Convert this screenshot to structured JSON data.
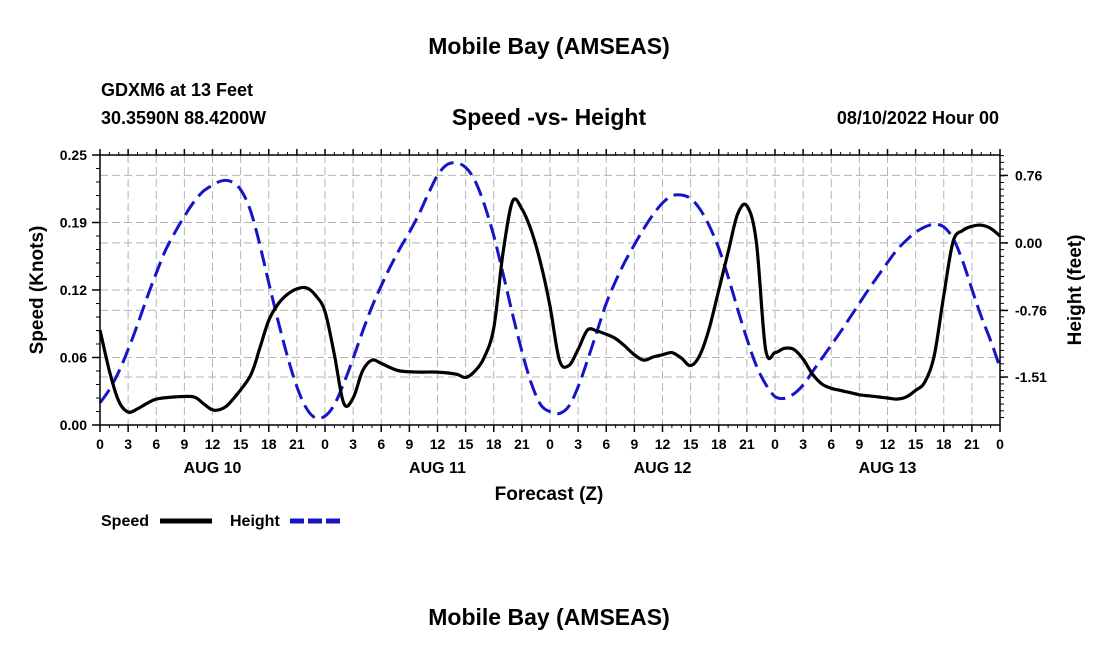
{
  "header": {
    "title": "Mobile Bay (AMSEAS)",
    "station": "GDXM6 at 13 Feet",
    "coords": "30.3590N  88.4200W",
    "datetime": "08/10/2022 Hour 00"
  },
  "footer": {
    "title": "Mobile Bay (AMSEAS)"
  },
  "colors": {
    "speed": "#000000",
    "height": "#1515c8",
    "grid": "#b4b4b4"
  },
  "chart_data": {
    "type": "line",
    "title": "Speed -vs- Height",
    "xlabel": "Forecast (Z)",
    "ylabel": "Speed (Knots)",
    "y2label": "Height (feet)",
    "xlim": [
      0,
      96
    ],
    "ylim": [
      0,
      0.25
    ],
    "y2lim": [
      -2.05,
      0.99
    ],
    "y_ticks": [
      "0.00",
      "0.06",
      "0.12",
      "0.19",
      "0.25"
    ],
    "y_tick_values": [
      0,
      0.0625,
      0.125,
      0.1875,
      0.25
    ],
    "y2_ticks": [
      "-1.51",
      "-0.76",
      "0.00",
      "0.76"
    ],
    "y2_tick_values": [
      -1.51,
      -0.76,
      0.0,
      0.76
    ],
    "x_tick_labels": [
      "0",
      "3",
      "6",
      "9",
      "12",
      "15",
      "18",
      "21",
      "0",
      "3",
      "6",
      "9",
      "12",
      "15",
      "18",
      "21",
      "0",
      "3",
      "6",
      "9",
      "12",
      "15",
      "18",
      "21",
      "0",
      "3",
      "6",
      "9",
      "12",
      "15",
      "18",
      "21",
      "0"
    ],
    "day_labels": [
      "AUG 10",
      "AUG 11",
      "AUG 12",
      "AUG 13"
    ],
    "day_label_hours": [
      12,
      36,
      60,
      84
    ],
    "series": [
      {
        "name": "Speed",
        "axis": "left",
        "x": [
          0,
          1,
          2,
          3,
          4,
          5,
          6,
          8,
          10,
          11,
          12,
          13,
          14,
          16,
          17,
          18,
          19,
          20,
          21,
          22,
          23,
          24,
          25,
          26,
          27,
          28,
          29,
          30,
          31,
          32,
          34,
          36,
          38,
          39,
          40,
          41,
          42,
          43,
          44,
          45,
          46,
          47,
          48,
          49,
          50,
          51,
          52,
          53,
          54,
          55,
          56,
          57,
          58,
          59,
          60,
          61,
          62,
          63,
          64,
          65,
          66,
          67,
          68,
          69,
          70,
          71,
          72,
          73,
          74,
          75,
          76,
          77,
          78,
          79,
          80,
          81,
          82,
          83,
          84,
          85,
          86,
          87,
          88,
          89,
          90,
          91,
          92,
          93,
          94,
          95,
          96
        ],
        "values": [
          0.088,
          0.05,
          0.022,
          0.012,
          0.015,
          0.02,
          0.024,
          0.026,
          0.026,
          0.02,
          0.014,
          0.015,
          0.022,
          0.045,
          0.07,
          0.097,
          0.112,
          0.121,
          0.126,
          0.127,
          0.12,
          0.105,
          0.065,
          0.02,
          0.025,
          0.05,
          0.06,
          0.057,
          0.053,
          0.05,
          0.049,
          0.049,
          0.047,
          0.044,
          0.05,
          0.063,
          0.09,
          0.16,
          0.207,
          0.2,
          0.18,
          0.15,
          0.11,
          0.06,
          0.055,
          0.07,
          0.088,
          0.087,
          0.084,
          0.08,
          0.073,
          0.065,
          0.06,
          0.063,
          0.065,
          0.067,
          0.062,
          0.055,
          0.065,
          0.09,
          0.125,
          0.16,
          0.195,
          0.203,
          0.17,
          0.07,
          0.067,
          0.071,
          0.07,
          0.061,
          0.047,
          0.038,
          0.034,
          0.032,
          0.03,
          0.028,
          0.027,
          0.026,
          0.025,
          0.024,
          0.026,
          0.032,
          0.04,
          0.065,
          0.12,
          0.17,
          0.18,
          0.184,
          0.185,
          0.182,
          0.175
        ]
      },
      {
        "name": "Height",
        "axis": "right",
        "dashed": true,
        "x": [
          0,
          1,
          2,
          3,
          4,
          5,
          6,
          7,
          8,
          9,
          10,
          11,
          12,
          13,
          14,
          15,
          16,
          17,
          18,
          19,
          20,
          21,
          22,
          23,
          24,
          25,
          26,
          27,
          28,
          29,
          30,
          31,
          32,
          33,
          34,
          35,
          36,
          37,
          38,
          39,
          40,
          41,
          42,
          43,
          44,
          45,
          46,
          47,
          48,
          49,
          50,
          51,
          52,
          53,
          54,
          55,
          56,
          57,
          58,
          59,
          60,
          61,
          62,
          63,
          64,
          65,
          66,
          67,
          68,
          69,
          70,
          71,
          72,
          73,
          74,
          75,
          76,
          77,
          78,
          79,
          80,
          81,
          82,
          83,
          84,
          85,
          86,
          87,
          88,
          89,
          90,
          91,
          92,
          93,
          94,
          95,
          96
        ],
        "values": [
          -1.8,
          -1.65,
          -1.45,
          -1.2,
          -0.92,
          -0.62,
          -0.34,
          -0.08,
          0.12,
          0.3,
          0.46,
          0.58,
          0.65,
          0.7,
          0.69,
          0.6,
          0.38,
          0.0,
          -0.45,
          -0.88,
          -1.28,
          -1.62,
          -1.86,
          -1.97,
          -1.95,
          -1.82,
          -1.58,
          -1.3,
          -1.0,
          -0.72,
          -0.48,
          -0.26,
          -0.06,
          0.12,
          0.32,
          0.55,
          0.76,
          0.88,
          0.9,
          0.85,
          0.7,
          0.43,
          0.08,
          -0.35,
          -0.8,
          -1.22,
          -1.58,
          -1.82,
          -1.9,
          -1.92,
          -1.84,
          -1.62,
          -1.32,
          -1.0,
          -0.68,
          -0.43,
          -0.21,
          -0.02,
          0.16,
          0.32,
          0.45,
          0.53,
          0.54,
          0.5,
          0.38,
          0.19,
          -0.06,
          -0.38,
          -0.74,
          -1.08,
          -1.38,
          -1.59,
          -1.73,
          -1.75,
          -1.7,
          -1.6,
          -1.45,
          -1.3,
          -1.15,
          -1.0,
          -0.84,
          -0.68,
          -0.52,
          -0.37,
          -0.22,
          -0.08,
          0.03,
          0.12,
          0.18,
          0.21,
          0.18,
          0.05,
          -0.2,
          -0.52,
          -0.83,
          -1.1,
          -1.4
        ]
      }
    ],
    "legend": [
      {
        "label": "Speed",
        "color": "#000000",
        "dashed": false
      },
      {
        "label": "Height",
        "color": "#1515c8",
        "dashed": true
      }
    ],
    "grid": true
  }
}
